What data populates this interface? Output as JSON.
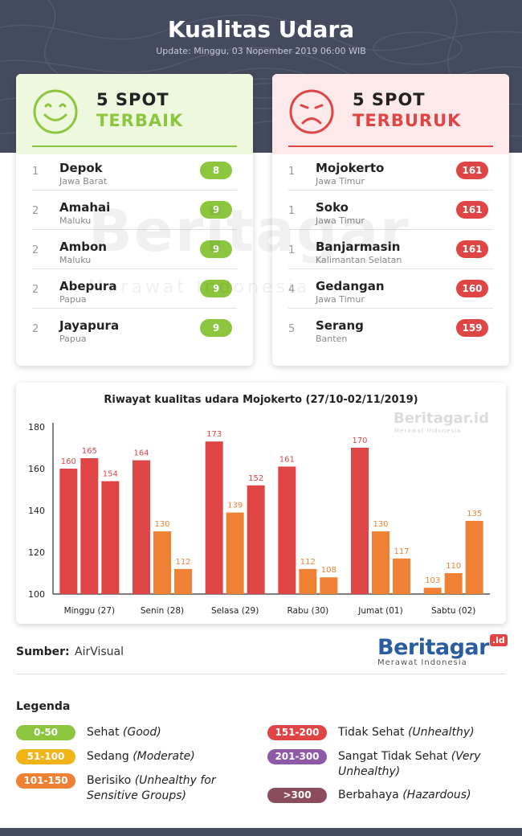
{
  "header": {
    "title": "Kualitas Udara",
    "update": "Update: Minggu, 03 Nopember 2019 06:00 WIB"
  },
  "best": {
    "heading_line1": "5 SPOT",
    "heading_line2": "TERBAIK",
    "icon": "smiley-face-icon",
    "color": "#8cc63f",
    "items": [
      {
        "rank": "1",
        "city": "Depok",
        "province": "Jawa Barat",
        "aqi": "8"
      },
      {
        "rank": "2",
        "city": "Amahai",
        "province": "Maluku",
        "aqi": "9"
      },
      {
        "rank": "2",
        "city": "Ambon",
        "province": "Maluku",
        "aqi": "9"
      },
      {
        "rank": "2",
        "city": "Abepura",
        "province": "Papua",
        "aqi": "9"
      },
      {
        "rank": "2",
        "city": "Jayapura",
        "province": "Papua",
        "aqi": "9"
      }
    ]
  },
  "worst": {
    "heading_line1": "5 SPOT",
    "heading_line2": "TERBURUK",
    "icon": "sad-face-icon",
    "color": "#e04545",
    "items": [
      {
        "rank": "1",
        "city": "Mojokerto",
        "province": "Jawa Timur",
        "aqi": "161"
      },
      {
        "rank": "1",
        "city": "Soko",
        "province": "Jawa Timur",
        "aqi": "161"
      },
      {
        "rank": "1",
        "city": "Banjarmasin",
        "province": "Kalimantan Selatan",
        "aqi": "161"
      },
      {
        "rank": "4",
        "city": "Gedangan",
        "province": "Jawa Timur",
        "aqi": "160"
      },
      {
        "rank": "5",
        "city": "Serang",
        "province": "Banten",
        "aqi": "159"
      }
    ]
  },
  "watermark": {
    "brand": "Beritagar",
    "tag": ".id",
    "tagline": "Merawat Indonesia"
  },
  "chart_data": {
    "type": "bar",
    "title": "Riwayat kualitas udara Mojokerto (27/10-02/11/2019)",
    "categories": [
      "Minggu (27)",
      "Senin (28)",
      "Selasa (29)",
      "Rabu (30)",
      "Jumat (01)",
      "Sabtu (02)"
    ],
    "groups": [
      [
        160,
        165,
        154
      ],
      [
        164,
        130,
        112
      ],
      [
        173,
        139,
        152
      ],
      [
        161,
        112,
        108
      ],
      [
        170,
        130,
        117
      ],
      [
        103,
        110,
        135
      ]
    ],
    "ylim": [
      100,
      180
    ],
    "yticks": [
      100,
      120,
      140,
      160,
      180
    ],
    "color_rule": "value >= 151 red #e04545, 101-150 orange #ef8134",
    "colors": {
      "unhealthy": "#e04545",
      "sensitive": "#ef8134"
    }
  },
  "source": {
    "label": "Sumber:",
    "value": "AirVisual"
  },
  "legend": {
    "title": "Legenda",
    "items": [
      {
        "range": "0-50",
        "label": "Sehat",
        "label_en": "(Good)",
        "color": "#8cc63f"
      },
      {
        "range": "51-100",
        "label": "Sedang",
        "label_en": "(Moderate)",
        "color": "#f0b418"
      },
      {
        "range": "101-150",
        "label": "Berisiko",
        "label_en": "(Unhealthy for Sensitive Groups)",
        "color": "#ef8134"
      },
      {
        "range": "151-200",
        "label": "Tidak Sehat",
        "label_en": "(Unhealthy)",
        "color": "#e04545"
      },
      {
        "range": "201-300",
        "label": "Sangat Tidak Sehat",
        "label_en": "(Very Unhealthy)",
        "color": "#8e5aa8"
      },
      {
        "range": ">300",
        "label": "Berbahaya",
        "label_en": "(Hazardous)",
        "color": "#8b4d5c"
      }
    ]
  }
}
